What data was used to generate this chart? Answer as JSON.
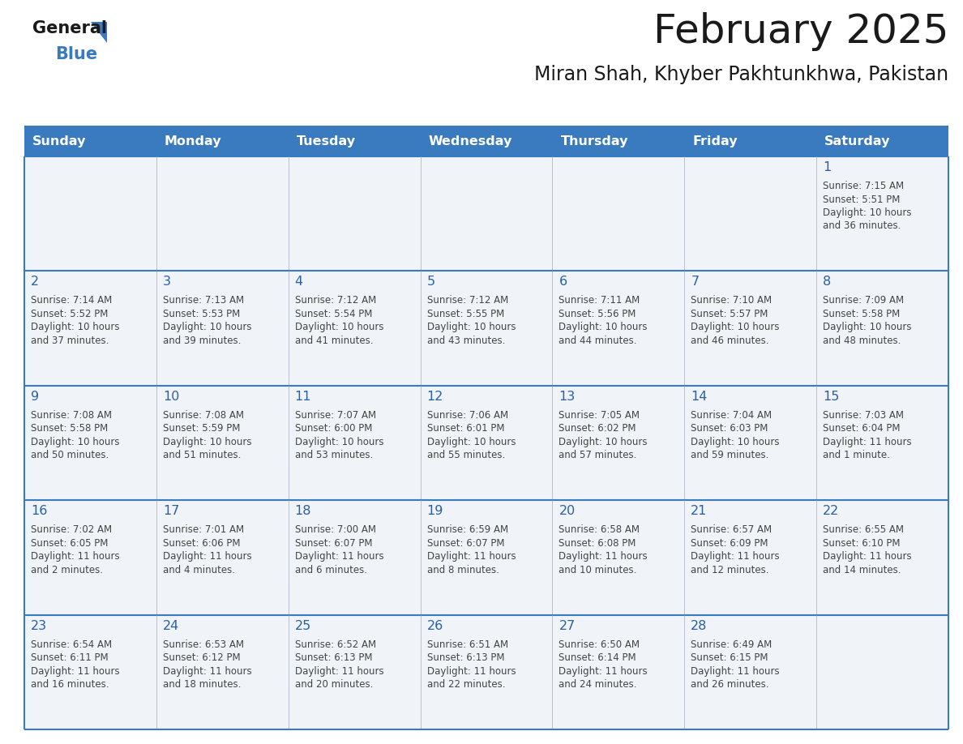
{
  "title": "February 2025",
  "subtitle": "Miran Shah, Khyber Pakhtunkhwa, Pakistan",
  "header_color": "#3a7abf",
  "header_text_color": "#ffffff",
  "background_color": "#ffffff",
  "cell_bg_color": "#f0f4f8",
  "text_color": "#444444",
  "day_number_color": "#2a5fa5",
  "line_color": "#3a7abf",
  "weekdays": [
    "Sunday",
    "Monday",
    "Tuesday",
    "Wednesday",
    "Thursday",
    "Friday",
    "Saturday"
  ],
  "calendar_data": [
    [
      null,
      null,
      null,
      null,
      null,
      null,
      {
        "day": "1",
        "sunrise": "7:15 AM",
        "sunset": "5:51 PM",
        "daylight_line1": "10 hours",
        "daylight_line2": "and 36 minutes."
      }
    ],
    [
      {
        "day": "2",
        "sunrise": "7:14 AM",
        "sunset": "5:52 PM",
        "daylight_line1": "10 hours",
        "daylight_line2": "and 37 minutes."
      },
      {
        "day": "3",
        "sunrise": "7:13 AM",
        "sunset": "5:53 PM",
        "daylight_line1": "10 hours",
        "daylight_line2": "and 39 minutes."
      },
      {
        "day": "4",
        "sunrise": "7:12 AM",
        "sunset": "5:54 PM",
        "daylight_line1": "10 hours",
        "daylight_line2": "and 41 minutes."
      },
      {
        "day": "5",
        "sunrise": "7:12 AM",
        "sunset": "5:55 PM",
        "daylight_line1": "10 hours",
        "daylight_line2": "and 43 minutes."
      },
      {
        "day": "6",
        "sunrise": "7:11 AM",
        "sunset": "5:56 PM",
        "daylight_line1": "10 hours",
        "daylight_line2": "and 44 minutes."
      },
      {
        "day": "7",
        "sunrise": "7:10 AM",
        "sunset": "5:57 PM",
        "daylight_line1": "10 hours",
        "daylight_line2": "and 46 minutes."
      },
      {
        "day": "8",
        "sunrise": "7:09 AM",
        "sunset": "5:58 PM",
        "daylight_line1": "10 hours",
        "daylight_line2": "and 48 minutes."
      }
    ],
    [
      {
        "day": "9",
        "sunrise": "7:08 AM",
        "sunset": "5:58 PM",
        "daylight_line1": "10 hours",
        "daylight_line2": "and 50 minutes."
      },
      {
        "day": "10",
        "sunrise": "7:08 AM",
        "sunset": "5:59 PM",
        "daylight_line1": "10 hours",
        "daylight_line2": "and 51 minutes."
      },
      {
        "day": "11",
        "sunrise": "7:07 AM",
        "sunset": "6:00 PM",
        "daylight_line1": "10 hours",
        "daylight_line2": "and 53 minutes."
      },
      {
        "day": "12",
        "sunrise": "7:06 AM",
        "sunset": "6:01 PM",
        "daylight_line1": "10 hours",
        "daylight_line2": "and 55 minutes."
      },
      {
        "day": "13",
        "sunrise": "7:05 AM",
        "sunset": "6:02 PM",
        "daylight_line1": "10 hours",
        "daylight_line2": "and 57 minutes."
      },
      {
        "day": "14",
        "sunrise": "7:04 AM",
        "sunset": "6:03 PM",
        "daylight_line1": "10 hours",
        "daylight_line2": "and 59 minutes."
      },
      {
        "day": "15",
        "sunrise": "7:03 AM",
        "sunset": "6:04 PM",
        "daylight_line1": "11 hours",
        "daylight_line2": "and 1 minute."
      }
    ],
    [
      {
        "day": "16",
        "sunrise": "7:02 AM",
        "sunset": "6:05 PM",
        "daylight_line1": "11 hours",
        "daylight_line2": "and 2 minutes."
      },
      {
        "day": "17",
        "sunrise": "7:01 AM",
        "sunset": "6:06 PM",
        "daylight_line1": "11 hours",
        "daylight_line2": "and 4 minutes."
      },
      {
        "day": "18",
        "sunrise": "7:00 AM",
        "sunset": "6:07 PM",
        "daylight_line1": "11 hours",
        "daylight_line2": "and 6 minutes."
      },
      {
        "day": "19",
        "sunrise": "6:59 AM",
        "sunset": "6:07 PM",
        "daylight_line1": "11 hours",
        "daylight_line2": "and 8 minutes."
      },
      {
        "day": "20",
        "sunrise": "6:58 AM",
        "sunset": "6:08 PM",
        "daylight_line1": "11 hours",
        "daylight_line2": "and 10 minutes."
      },
      {
        "day": "21",
        "sunrise": "6:57 AM",
        "sunset": "6:09 PM",
        "daylight_line1": "11 hours",
        "daylight_line2": "and 12 minutes."
      },
      {
        "day": "22",
        "sunrise": "6:55 AM",
        "sunset": "6:10 PM",
        "daylight_line1": "11 hours",
        "daylight_line2": "and 14 minutes."
      }
    ],
    [
      {
        "day": "23",
        "sunrise": "6:54 AM",
        "sunset": "6:11 PM",
        "daylight_line1": "11 hours",
        "daylight_line2": "and 16 minutes."
      },
      {
        "day": "24",
        "sunrise": "6:53 AM",
        "sunset": "6:12 PM",
        "daylight_line1": "11 hours",
        "daylight_line2": "and 18 minutes."
      },
      {
        "day": "25",
        "sunrise": "6:52 AM",
        "sunset": "6:13 PM",
        "daylight_line1": "11 hours",
        "daylight_line2": "and 20 minutes."
      },
      {
        "day": "26",
        "sunrise": "6:51 AM",
        "sunset": "6:13 PM",
        "daylight_line1": "11 hours",
        "daylight_line2": "and 22 minutes."
      },
      {
        "day": "27",
        "sunrise": "6:50 AM",
        "sunset": "6:14 PM",
        "daylight_line1": "11 hours",
        "daylight_line2": "and 24 minutes."
      },
      {
        "day": "28",
        "sunrise": "6:49 AM",
        "sunset": "6:15 PM",
        "daylight_line1": "11 hours",
        "daylight_line2": "and 26 minutes."
      },
      null
    ]
  ]
}
